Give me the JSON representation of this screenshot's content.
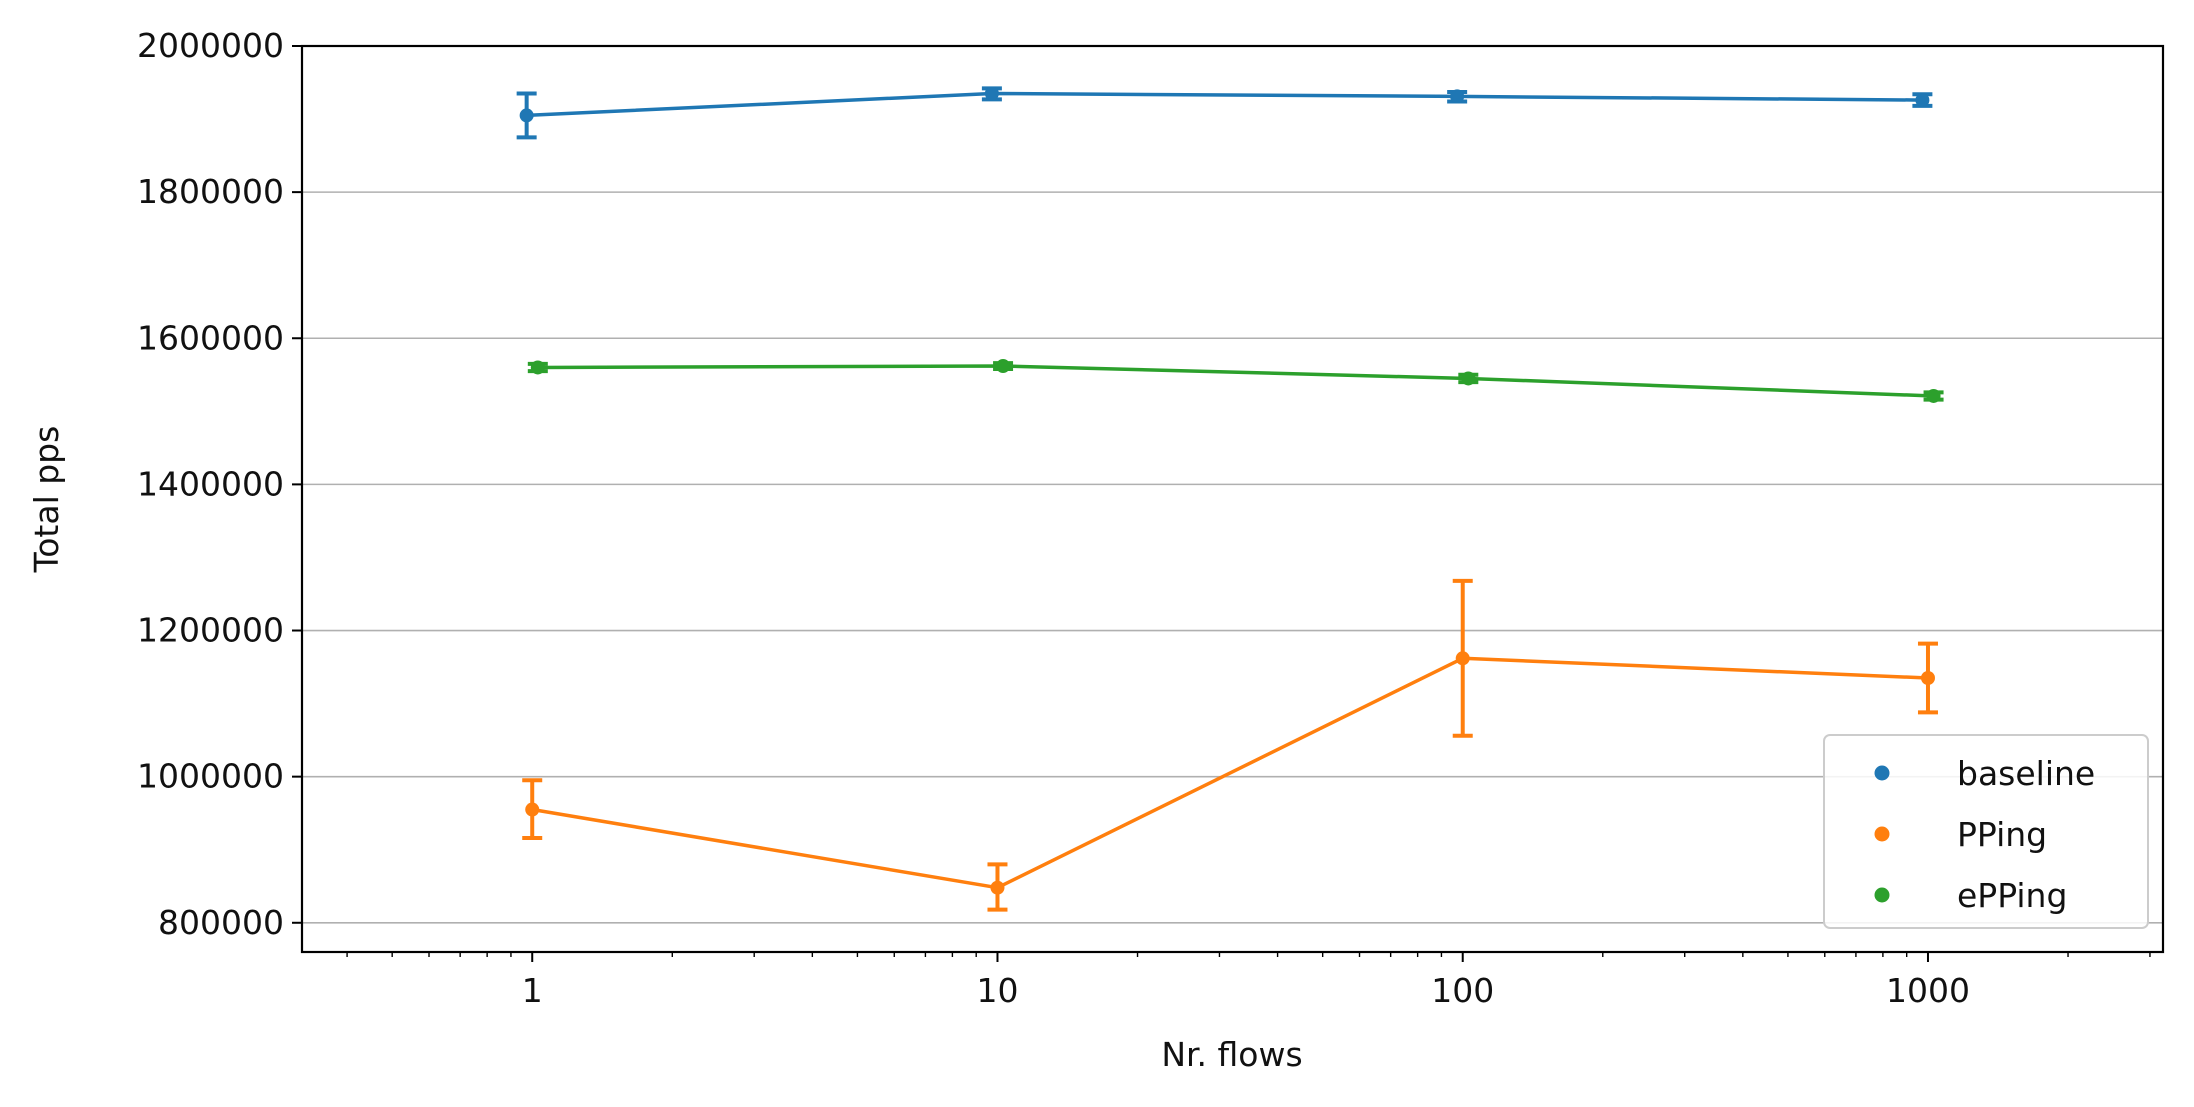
{
  "chart_data": {
    "type": "line",
    "title": "",
    "xlabel": "Nr. flows",
    "ylabel": "Total pps",
    "x_scale": "log",
    "x_ticks": [
      1,
      10,
      100,
      1000
    ],
    "x_tick_labels": [
      "1",
      "10",
      "100",
      "1000"
    ],
    "xlim": [
      0.32,
      3200
    ],
    "y_ticks": [
      800000,
      1000000,
      1200000,
      1400000,
      1600000,
      1800000,
      2000000
    ],
    "y_tick_labels": [
      "800000",
      "1000000",
      "1200000",
      "1400000",
      "1600000",
      "1800000",
      "2000000"
    ],
    "ylim": [
      760000,
      2000000
    ],
    "grid": "horizontal",
    "legend_position": "lower right",
    "series": [
      {
        "name": "baseline",
        "color": "#1f77b4",
        "x": [
          1,
          10,
          100,
          1000
        ],
        "y": [
          1905000,
          1935000,
          1931000,
          1926000
        ],
        "err_low": [
          1875000,
          1927000,
          1924000,
          1918000
        ],
        "err_high": [
          1935000,
          1942000,
          1937000,
          1934000
        ]
      },
      {
        "name": "PPing",
        "color": "#ff7f0e",
        "x": [
          1,
          10,
          100,
          1000
        ],
        "y": [
          955000,
          848000,
          1162000,
          1135000
        ],
        "err_low": [
          916000,
          818000,
          1056000,
          1088000
        ],
        "err_high": [
          995000,
          880000,
          1268000,
          1182000
        ]
      },
      {
        "name": "ePPing",
        "color": "#2ca02c",
        "x": [
          1,
          10,
          100,
          1000
        ],
        "y": [
          1560000,
          1562000,
          1545000,
          1521000
        ],
        "err_low": [
          1555000,
          1558000,
          1540000,
          1516000
        ],
        "err_high": [
          1565000,
          1566000,
          1550000,
          1526000
        ]
      }
    ]
  }
}
